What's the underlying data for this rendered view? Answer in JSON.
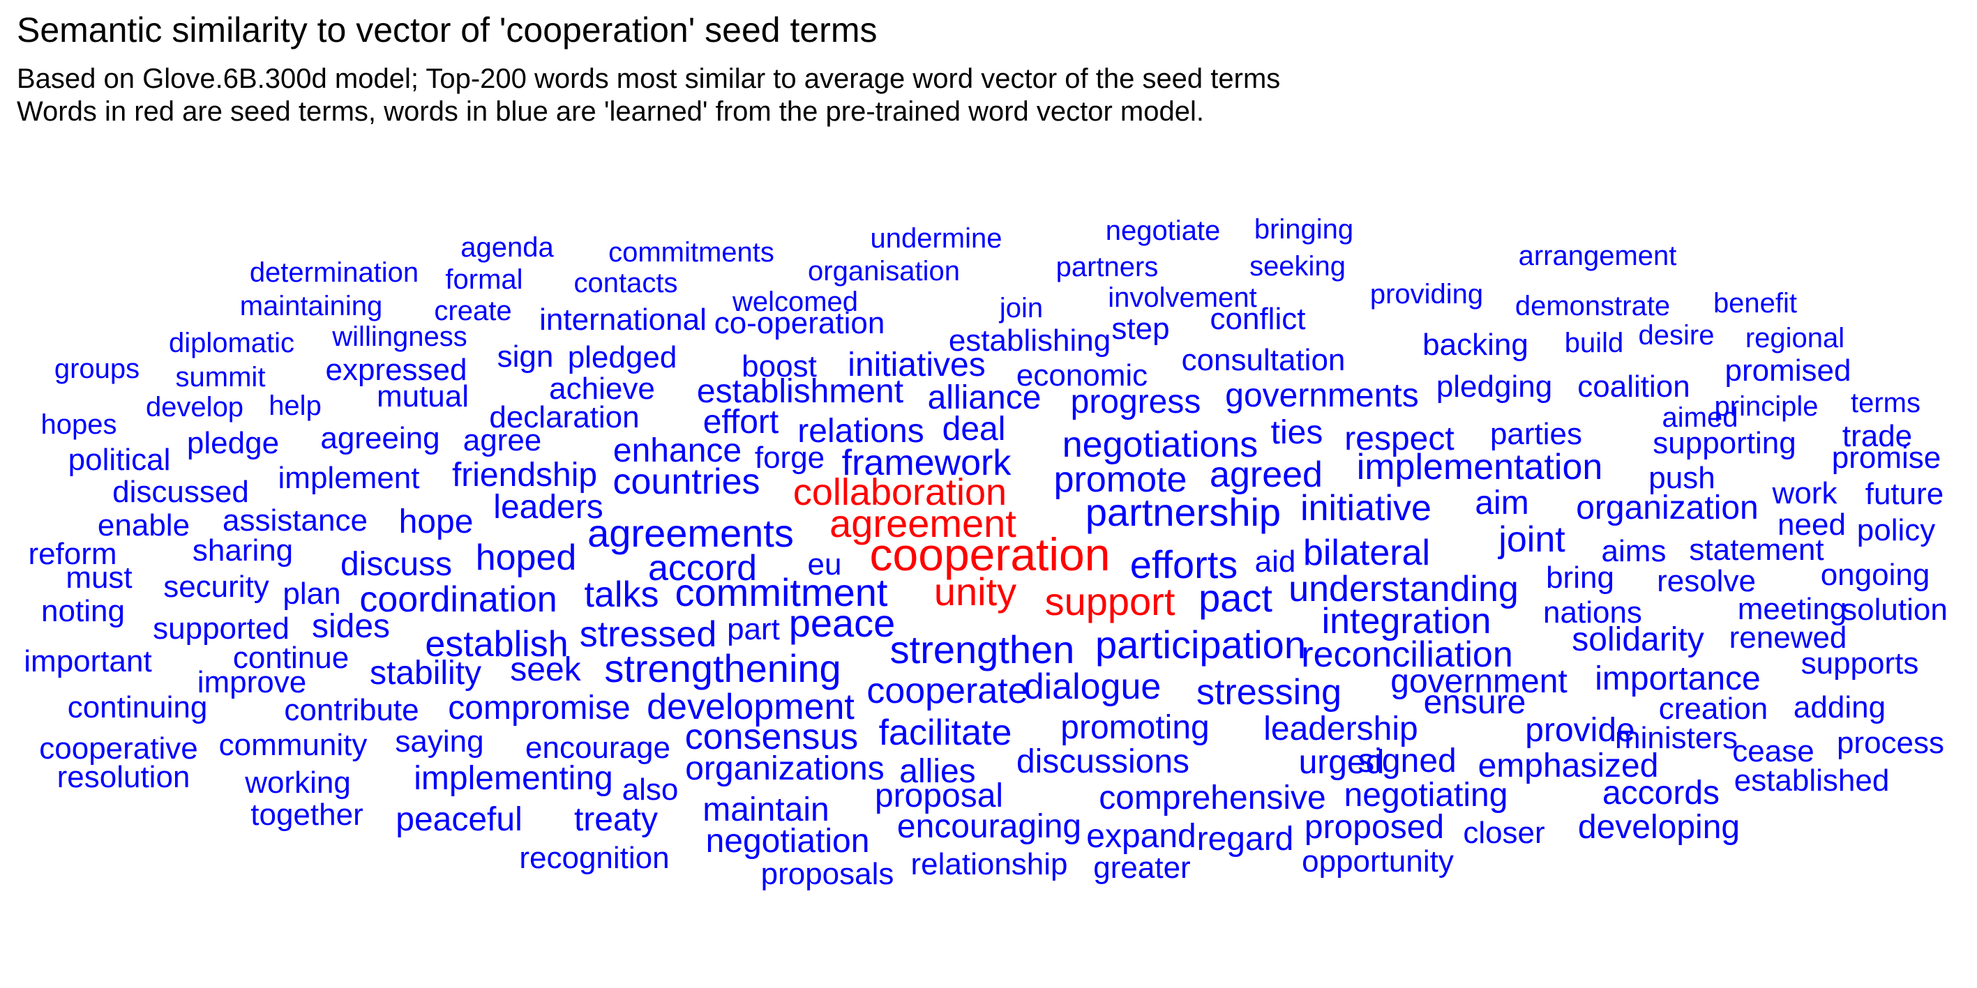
{
  "chart_data": {
    "type": "wordcloud",
    "title": "Semantic similarity to vector of 'cooperation' seed terms",
    "subtitle_line1": "Based on Glove.6B.300d model; Top-200 words most similar to average word vector of the seed terms",
    "subtitle_line2": "Words in red are seed terms, words in blue are 'learned' from the pre-trained word vector model.",
    "colors": {
      "seed": "#FF0000",
      "learned": "#0000FF",
      "title": "#000000"
    },
    "seed_terms": [
      "cooperation",
      "agreement",
      "unity",
      "support",
      "collaboration"
    ],
    "learned_terms": [
      "negotiate",
      "bringing",
      "undermine",
      "agenda",
      "commitments",
      "arrangement",
      "determination",
      "formal",
      "organisation",
      "partners",
      "seeking",
      "contacts",
      "involvement",
      "providing",
      "maintaining",
      "create",
      "welcomed",
      "join",
      "benefit",
      "demonstrate",
      "international",
      "conflict",
      "co-operation",
      "step",
      "willingness",
      "diplomatic",
      "establishing",
      "desire",
      "regional",
      "backing",
      "build",
      "groups",
      "summit",
      "expressed",
      "sign",
      "pledged",
      "boost",
      "initiatives",
      "economic",
      "consultation",
      "promised",
      "pledging",
      "coalition",
      "develop",
      "help",
      "mutual",
      "achieve",
      "establishment",
      "alliance",
      "progress",
      "governments",
      "hopes",
      "principle",
      "terms",
      "declaration",
      "effort",
      "aimed",
      "relations",
      "deal",
      "ties",
      "pledge",
      "agreeing",
      "agree",
      "respect",
      "parties",
      "political",
      "enhance",
      "forge",
      "negotiations",
      "supporting",
      "trade",
      "framework",
      "promise",
      "implement",
      "friendship",
      "implementation",
      "countries",
      "discussed",
      "promote",
      "agreed",
      "push",
      "future",
      "work",
      "leaders",
      "enable",
      "assistance",
      "hope",
      "initiative",
      "aim",
      "organization",
      "need",
      "partnership",
      "policy",
      "agreements",
      "reform",
      "sharing",
      "hoped",
      "joint",
      "aims",
      "statement",
      "discuss",
      "bilateral",
      "accord",
      "eu",
      "efforts",
      "aid",
      "must",
      "ongoing",
      "bring",
      "security",
      "plan",
      "resolve",
      "talks",
      "commitment",
      "understanding",
      "noting",
      "coordination",
      "pact",
      "meeting",
      "solution",
      "nations",
      "supported",
      "sides",
      "integration",
      "part",
      "peace",
      "stressed",
      "renewed",
      "establish",
      "solidarity",
      "strengthen",
      "participation",
      "important",
      "continue",
      "reconciliation",
      "supports",
      "seek",
      "stability",
      "strengthening",
      "improve",
      "government",
      "importance",
      "cooperate",
      "dialogue",
      "stressing",
      "continuing",
      "contribute",
      "compromise",
      "development",
      "ensure",
      "creation",
      "adding",
      "provide",
      "promoting",
      "leadership",
      "facilitate",
      "cooperative",
      "community",
      "ministers",
      "consensus",
      "saying",
      "encourage",
      "cease",
      "process",
      "discussions",
      "urged",
      "signed",
      "allies",
      "organizations",
      "emphasized",
      "resolution",
      "working",
      "implementing",
      "established",
      "also",
      "proposal",
      "comprehensive",
      "accords",
      "negotiating",
      "together",
      "maintain",
      "peaceful",
      "treaty",
      "encouraging",
      "proposed",
      "closer",
      "developing",
      "negotiation",
      "expand",
      "regard",
      "recognition",
      "relationship",
      "greater",
      "opportunity",
      "proposals"
    ]
  }
}
